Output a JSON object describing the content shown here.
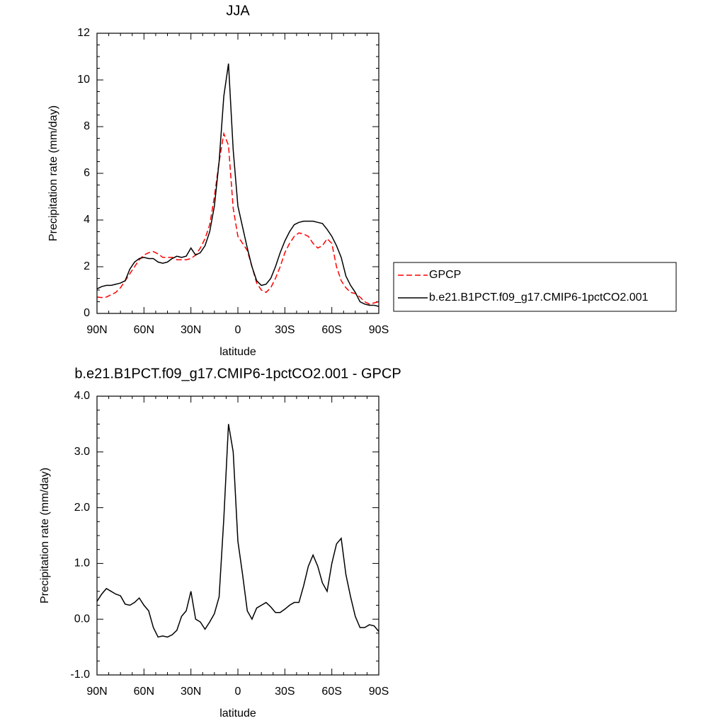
{
  "chart_data": [
    {
      "type": "line",
      "title": "JJA",
      "xlabel": "latitude",
      "ylabel": "Precipitation rate (mm/day)",
      "x": [
        90,
        87,
        84,
        81,
        78,
        75,
        72,
        69,
        66,
        63,
        60,
        57,
        54,
        51,
        48,
        45,
        42,
        39,
        36,
        33,
        30,
        27,
        24,
        21,
        18,
        15,
        12,
        9,
        6,
        3,
        0,
        -3,
        -6,
        -9,
        -12,
        -15,
        -18,
        -21,
        -24,
        -27,
        -30,
        -33,
        -36,
        -39,
        -42,
        -45,
        -48,
        -51,
        -54,
        -57,
        -60,
        -63,
        -66,
        -69,
        -72,
        -75,
        -78,
        -81,
        -84,
        -87,
        -90
      ],
      "xlim": [
        90,
        -90
      ],
      "xticks": [
        {
          "value": 90,
          "label": "90N"
        },
        {
          "value": 60,
          "label": "60N"
        },
        {
          "value": 30,
          "label": "30N"
        },
        0,
        {
          "value": -30,
          "label": "30S"
        },
        {
          "value": -60,
          "label": "60S"
        },
        {
          "value": -90,
          "label": "90S"
        }
      ],
      "ylim": [
        0,
        12
      ],
      "yticks": [
        0,
        2,
        4,
        6,
        8,
        10,
        12
      ],
      "legend": "right",
      "series": [
        {
          "name": "GPCP",
          "color": "#ff0000",
          "linestyle": "dashed",
          "values": [
            0.7,
            0.68,
            0.7,
            0.8,
            0.9,
            1.1,
            1.4,
            1.7,
            2.0,
            2.3,
            2.5,
            2.6,
            2.65,
            2.55,
            2.4,
            2.4,
            2.4,
            2.3,
            2.3,
            2.3,
            2.35,
            2.5,
            2.8,
            3.2,
            3.8,
            5.0,
            6.5,
            7.7,
            7.2,
            4.5,
            3.3,
            3.0,
            2.7,
            2.0,
            1.3,
            1.0,
            0.9,
            1.1,
            1.5,
            2.0,
            2.6,
            3.0,
            3.3,
            3.45,
            3.4,
            3.3,
            3.0,
            2.8,
            2.9,
            3.2,
            3.0,
            2.0,
            1.4,
            1.1,
            0.9,
            0.85,
            0.7,
            0.5,
            0.4,
            0.45,
            0.5
          ]
        },
        {
          "name": "b.e21.B1PCT.f09_g17.CMIP6-1pctCO2.001",
          "color": "#000000",
          "linestyle": "solid",
          "values": [
            1.05,
            1.15,
            1.2,
            1.2,
            1.25,
            1.3,
            1.4,
            1.9,
            2.2,
            2.35,
            2.4,
            2.35,
            2.35,
            2.2,
            2.15,
            2.2,
            2.35,
            2.45,
            2.4,
            2.45,
            2.8,
            2.5,
            2.6,
            2.9,
            3.5,
            4.6,
            6.5,
            9.3,
            10.7,
            7.0,
            4.6,
            3.7,
            2.8,
            2.0,
            1.4,
            1.2,
            1.25,
            1.5,
            2.0,
            2.6,
            3.1,
            3.5,
            3.8,
            3.9,
            3.95,
            3.95,
            3.95,
            3.9,
            3.85,
            3.6,
            3.3,
            2.9,
            2.4,
            1.6,
            1.2,
            0.9,
            0.5,
            0.4,
            0.35,
            0.35,
            0.3
          ]
        }
      ]
    },
    {
      "type": "line",
      "title": "b.e21.B1PCT.f09_g17.CMIP6-1pctCO2.001 - GPCP",
      "xlabel": "latitude",
      "ylabel": "Precipitation rate (mm/day)",
      "x": [
        90,
        87,
        84,
        81,
        78,
        75,
        72,
        69,
        66,
        63,
        60,
        57,
        54,
        51,
        48,
        45,
        42,
        39,
        36,
        33,
        30,
        27,
        24,
        21,
        18,
        15,
        12,
        9,
        6,
        3,
        0,
        -3,
        -6,
        -9,
        -12,
        -15,
        -18,
        -21,
        -24,
        -27,
        -30,
        -33,
        -36,
        -39,
        -42,
        -45,
        -48,
        -51,
        -54,
        -57,
        -60,
        -63,
        -66,
        -69,
        -72,
        -75,
        -78,
        -81,
        -84,
        -87,
        -90
      ],
      "xlim": [
        90,
        -90
      ],
      "xticks": [
        {
          "value": 90,
          "label": "90N"
        },
        {
          "value": 60,
          "label": "60N"
        },
        {
          "value": 30,
          "label": "30N"
        },
        0,
        {
          "value": -30,
          "label": "30S"
        },
        {
          "value": -60,
          "label": "60S"
        },
        {
          "value": -90,
          "label": "90S"
        }
      ],
      "ylim": [
        -1,
        4
      ],
      "yticks": [
        {
          "value": -1,
          "label": "-1.0"
        },
        {
          "value": 0,
          "label": "0.0"
        },
        {
          "value": 1,
          "label": "1.0"
        },
        {
          "value": 2,
          "label": "2.0"
        },
        {
          "value": 3,
          "label": "3.0"
        },
        {
          "value": 4,
          "label": "4.0"
        }
      ],
      "series": [
        {
          "color": "#000000",
          "linestyle": "solid",
          "values": [
            0.32,
            0.45,
            0.55,
            0.5,
            0.45,
            0.42,
            0.27,
            0.25,
            0.3,
            0.38,
            0.25,
            0.15,
            -0.15,
            -0.32,
            -0.3,
            -0.32,
            -0.28,
            -0.2,
            0.05,
            0.15,
            0.5,
            0.0,
            -0.05,
            -0.18,
            -0.05,
            0.1,
            0.4,
            1.8,
            3.5,
            3.0,
            1.4,
            0.8,
            0.15,
            0.0,
            0.2,
            0.25,
            0.3,
            0.22,
            0.12,
            0.12,
            0.18,
            0.25,
            0.3,
            0.3,
            0.6,
            0.95,
            1.15,
            0.95,
            0.65,
            0.5,
            1.0,
            1.35,
            1.45,
            0.8,
            0.4,
            0.05,
            -0.15,
            -0.15,
            -0.1,
            -0.12,
            -0.22
          ]
        }
      ]
    }
  ]
}
